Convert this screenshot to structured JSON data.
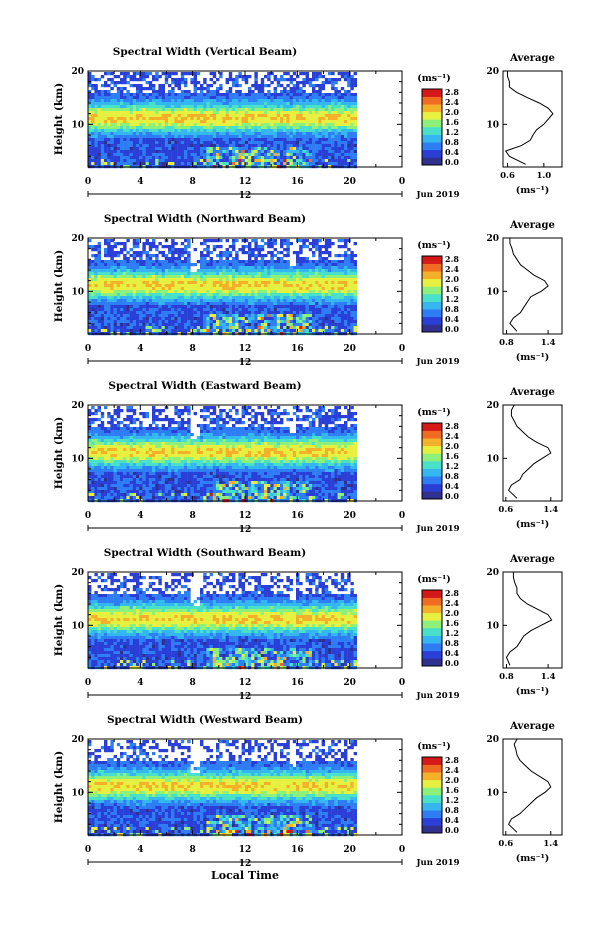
{
  "figure": {
    "x_axis_label": "Local Time",
    "date_label": "Jun 2019",
    "day_label": "12",
    "colorbar_unit": "(ms⁻¹)",
    "colorbar_ticks": [
      "0.0",
      "0.4",
      "0.8",
      "1.2",
      "1.6",
      "2.0",
      "2.4",
      "2.8"
    ],
    "colors": {
      "scale": [
        "#30308f",
        "#2a3fd6",
        "#2f7df5",
        "#34b6f0",
        "#48e0c8",
        "#8df07a",
        "#e6f040",
        "#f5b02a",
        "#f06a20",
        "#d41818"
      ]
    }
  },
  "chart_data": [
    {
      "type": "heatmap",
      "title": "Spectral Width (Vertical Beam)",
      "ylabel": "Height (km)",
      "xlim": [
        0,
        24
      ],
      "ylim": [
        2,
        20
      ],
      "x_ticks": [
        "0",
        "4",
        "8",
        "12",
        "16",
        "20",
        "0"
      ],
      "y_ticks": [
        "20",
        "10"
      ],
      "colorbar": {
        "min": 0.0,
        "max": 2.8
      },
      "average": {
        "title": "Average",
        "xlabel": "(ms⁻¹)",
        "xlim": [
          0.55,
          1.2
        ],
        "x_ticks": [
          "0.6",
          "1.0"
        ],
        "profile": [
          [
            2.5,
            0.8
          ],
          [
            4,
            0.62
          ],
          [
            5,
            0.58
          ],
          [
            6,
            0.75
          ],
          [
            7,
            0.85
          ],
          [
            8,
            0.88
          ],
          [
            9,
            0.92
          ],
          [
            10,
            1.0
          ],
          [
            11,
            1.05
          ],
          [
            12,
            1.1
          ],
          [
            13,
            1.05
          ],
          [
            14,
            0.95
          ],
          [
            15,
            0.82
          ],
          [
            16,
            0.7
          ],
          [
            17,
            0.62
          ],
          [
            18,
            0.62
          ],
          [
            19,
            0.6
          ],
          [
            20,
            0.6
          ]
        ]
      }
    },
    {
      "type": "heatmap",
      "title": "Spectral Width (Northward Beam)",
      "ylabel": "Height (km)",
      "xlim": [
        0,
        24
      ],
      "ylim": [
        2,
        20
      ],
      "x_ticks": [
        "0",
        "4",
        "8",
        "12",
        "16",
        "20",
        "0"
      ],
      "y_ticks": [
        "20",
        "10"
      ],
      "colorbar": {
        "min": 0.0,
        "max": 2.8
      },
      "average": {
        "title": "Average",
        "xlabel": "(ms⁻¹)",
        "xlim": [
          0.75,
          1.6
        ],
        "x_ticks": [
          "0.8",
          "1.4"
        ],
        "profile": [
          [
            2.5,
            0.95
          ],
          [
            4,
            0.85
          ],
          [
            5,
            0.9
          ],
          [
            6,
            1.0
          ],
          [
            7,
            1.05
          ],
          [
            8,
            1.1
          ],
          [
            9,
            1.15
          ],
          [
            10,
            1.3
          ],
          [
            11,
            1.4
          ],
          [
            12,
            1.35
          ],
          [
            13,
            1.2
          ],
          [
            14,
            1.1
          ],
          [
            15,
            1.0
          ],
          [
            16,
            0.95
          ],
          [
            17,
            0.9
          ],
          [
            18,
            0.88
          ],
          [
            19,
            0.85
          ],
          [
            20,
            0.85
          ]
        ]
      }
    },
    {
      "type": "heatmap",
      "title": "Spectral Width (Eastward Beam)",
      "ylabel": "Height (km)",
      "xlim": [
        0,
        24
      ],
      "ylim": [
        2,
        20
      ],
      "x_ticks": [
        "0",
        "4",
        "8",
        "12",
        "16",
        "20",
        "0"
      ],
      "y_ticks": [
        "20",
        "10"
      ],
      "colorbar": {
        "min": 0.0,
        "max": 2.8
      },
      "average": {
        "title": "Average",
        "xlabel": "(ms⁻¹)",
        "xlim": [
          0.55,
          1.6
        ],
        "x_ticks": [
          "0.6",
          "1.4"
        ],
        "profile": [
          [
            2.5,
            0.8
          ],
          [
            4,
            0.65
          ],
          [
            5,
            0.7
          ],
          [
            6,
            0.85
          ],
          [
            7,
            0.9
          ],
          [
            8,
            1.0
          ],
          [
            9,
            1.1
          ],
          [
            10,
            1.25
          ],
          [
            11,
            1.4
          ],
          [
            12,
            1.35
          ],
          [
            13,
            1.15
          ],
          [
            14,
            1.0
          ],
          [
            15,
            0.9
          ],
          [
            16,
            0.8
          ],
          [
            17,
            0.75
          ],
          [
            18,
            0.7
          ],
          [
            19,
            0.7
          ],
          [
            20,
            0.75
          ]
        ]
      }
    },
    {
      "type": "heatmap",
      "title": "Spectral Width (Southward Beam)",
      "ylabel": "Height (km)",
      "xlim": [
        0,
        24
      ],
      "ylim": [
        2,
        20
      ],
      "x_ticks": [
        "0",
        "4",
        "8",
        "12",
        "16",
        "20",
        "0"
      ],
      "y_ticks": [
        "20",
        "10"
      ],
      "colorbar": {
        "min": 0.0,
        "max": 2.8
      },
      "average": {
        "title": "Average",
        "xlabel": "(ms⁻¹)",
        "xlim": [
          0.75,
          1.6
        ],
        "x_ticks": [
          "0.8",
          "1.4"
        ],
        "profile": [
          [
            2.5,
            0.85
          ],
          [
            4,
            0.8
          ],
          [
            5,
            0.85
          ],
          [
            6,
            0.95
          ],
          [
            7,
            1.0
          ],
          [
            8,
            1.05
          ],
          [
            9,
            1.15
          ],
          [
            10,
            1.3
          ],
          [
            11,
            1.45
          ],
          [
            12,
            1.4
          ],
          [
            13,
            1.25
          ],
          [
            14,
            1.1
          ],
          [
            15,
            1.0
          ],
          [
            16,
            0.95
          ],
          [
            17,
            0.95
          ],
          [
            18,
            0.92
          ],
          [
            19,
            0.9
          ],
          [
            20,
            0.9
          ]
        ]
      }
    },
    {
      "type": "heatmap",
      "title": "Spectral Width (Westward Beam)",
      "ylabel": "Height (km)",
      "xlim": [
        0,
        24
      ],
      "ylim": [
        2,
        20
      ],
      "x_ticks": [
        "0",
        "4",
        "8",
        "12",
        "16",
        "20",
        "0"
      ],
      "y_ticks": [
        "20",
        "10"
      ],
      "colorbar": {
        "min": 0.0,
        "max": 2.8
      },
      "average": {
        "title": "Average",
        "xlabel": "(ms⁻¹)",
        "xlim": [
          0.55,
          1.6
        ],
        "x_ticks": [
          "0.6",
          "1.4"
        ],
        "profile": [
          [
            2.5,
            0.8
          ],
          [
            4,
            0.65
          ],
          [
            5,
            0.7
          ],
          [
            6,
            0.85
          ],
          [
            7,
            0.95
          ],
          [
            8,
            1.05
          ],
          [
            9,
            1.15
          ],
          [
            10,
            1.3
          ],
          [
            11,
            1.4
          ],
          [
            12,
            1.35
          ],
          [
            13,
            1.2
          ],
          [
            14,
            1.05
          ],
          [
            15,
            0.95
          ],
          [
            16,
            0.85
          ],
          [
            17,
            0.8
          ],
          [
            18,
            0.78
          ],
          [
            19,
            0.75
          ],
          [
            20,
            0.8
          ]
        ]
      }
    }
  ]
}
